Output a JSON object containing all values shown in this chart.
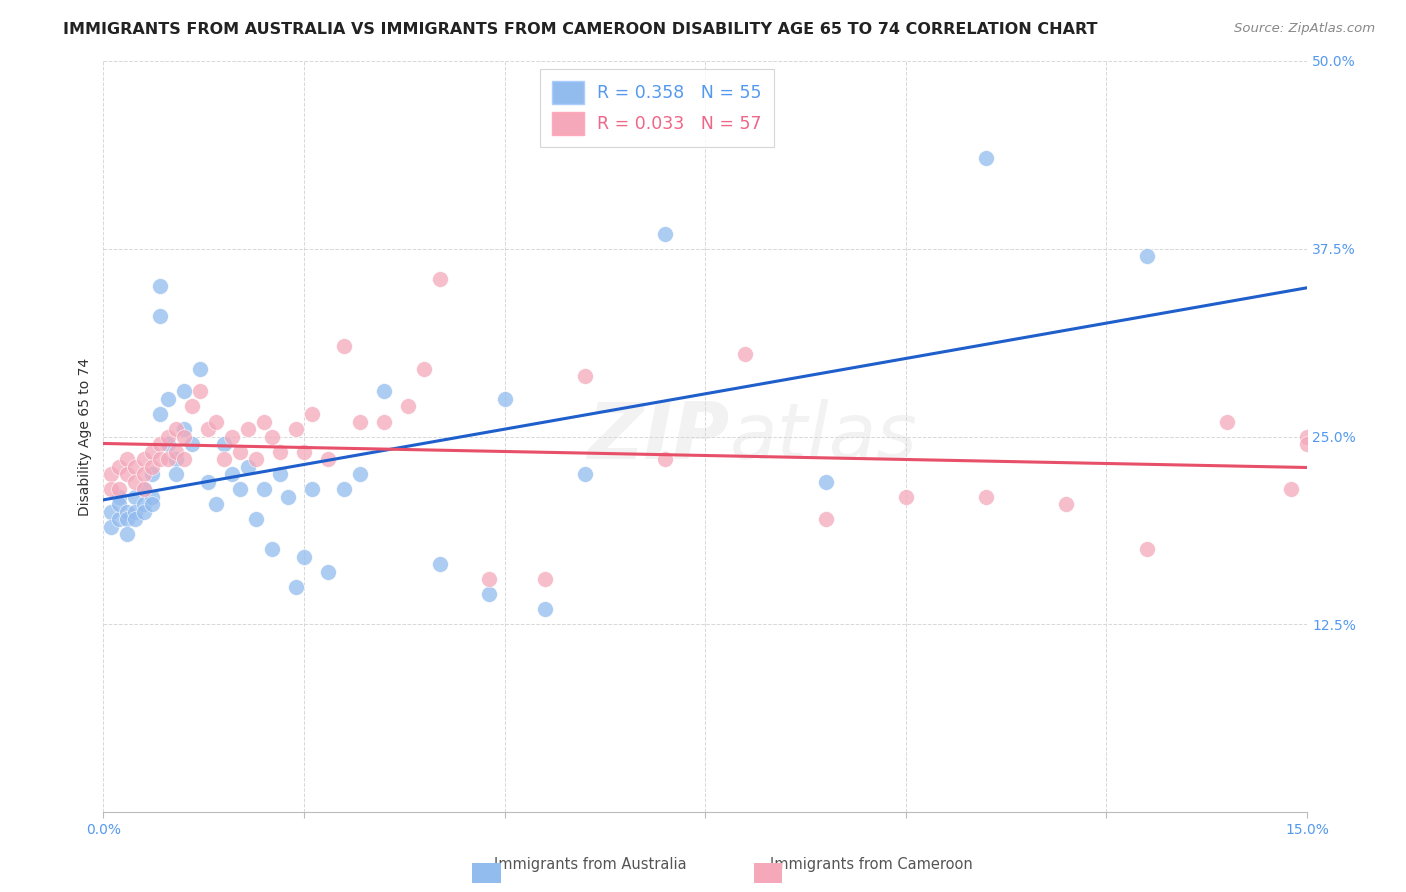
{
  "title": "IMMIGRANTS FROM AUSTRALIA VS IMMIGRANTS FROM CAMEROON DISABILITY AGE 65 TO 74 CORRELATION CHART",
  "source": "Source: ZipAtlas.com",
  "ylabel": "Disability Age 65 to 74",
  "xlim": [
    0.0,
    0.15
  ],
  "ylim": [
    0.0,
    0.5
  ],
  "xticks": [
    0.0,
    0.025,
    0.05,
    0.075,
    0.1,
    0.125,
    0.15
  ],
  "yticks": [
    0.0,
    0.125,
    0.25,
    0.375,
    0.5
  ],
  "yticklabels": [
    "",
    "12.5%",
    "25.0%",
    "37.5%",
    "50.0%"
  ],
  "legend_R_australia": "R = 0.358",
  "legend_N_australia": "N = 55",
  "legend_R_cameroon": "R = 0.033",
  "legend_N_cameroon": "N = 57",
  "color_australia": "#92BBEE",
  "color_cameroon": "#F4A8BA",
  "trendline_australia": "#1F5FCC",
  "trendline_cameroon": "#E8506A",
  "australia_x": [
    0.001,
    0.001,
    0.002,
    0.002,
    0.002,
    0.003,
    0.003,
    0.003,
    0.004,
    0.004,
    0.004,
    0.005,
    0.005,
    0.005,
    0.006,
    0.006,
    0.006,
    0.007,
    0.007,
    0.007,
    0.008,
    0.008,
    0.009,
    0.009,
    0.01,
    0.01,
    0.011,
    0.012,
    0.013,
    0.014,
    0.015,
    0.016,
    0.017,
    0.018,
    0.019,
    0.02,
    0.021,
    0.022,
    0.023,
    0.024,
    0.025,
    0.026,
    0.028,
    0.03,
    0.032,
    0.035,
    0.042,
    0.048,
    0.05,
    0.055,
    0.06,
    0.07,
    0.09,
    0.11,
    0.13
  ],
  "australia_y": [
    0.2,
    0.19,
    0.21,
    0.195,
    0.205,
    0.2,
    0.195,
    0.185,
    0.21,
    0.2,
    0.195,
    0.215,
    0.205,
    0.2,
    0.225,
    0.21,
    0.205,
    0.35,
    0.33,
    0.265,
    0.275,
    0.245,
    0.235,
    0.225,
    0.28,
    0.255,
    0.245,
    0.295,
    0.22,
    0.205,
    0.245,
    0.225,
    0.215,
    0.23,
    0.195,
    0.215,
    0.175,
    0.225,
    0.21,
    0.15,
    0.17,
    0.215,
    0.16,
    0.215,
    0.225,
    0.28,
    0.165,
    0.145,
    0.275,
    0.135,
    0.225,
    0.385,
    0.22,
    0.435,
    0.37
  ],
  "cameroon_x": [
    0.001,
    0.001,
    0.002,
    0.002,
    0.003,
    0.003,
    0.004,
    0.004,
    0.005,
    0.005,
    0.005,
    0.006,
    0.006,
    0.007,
    0.007,
    0.008,
    0.008,
    0.009,
    0.009,
    0.01,
    0.01,
    0.011,
    0.012,
    0.013,
    0.014,
    0.015,
    0.016,
    0.017,
    0.018,
    0.019,
    0.02,
    0.021,
    0.022,
    0.024,
    0.025,
    0.026,
    0.028,
    0.03,
    0.032,
    0.035,
    0.038,
    0.04,
    0.042,
    0.048,
    0.055,
    0.06,
    0.07,
    0.08,
    0.09,
    0.1,
    0.11,
    0.12,
    0.13,
    0.14,
    0.148,
    0.15,
    0.15
  ],
  "cameroon_y": [
    0.225,
    0.215,
    0.23,
    0.215,
    0.235,
    0.225,
    0.23,
    0.22,
    0.235,
    0.225,
    0.215,
    0.24,
    0.23,
    0.245,
    0.235,
    0.25,
    0.235,
    0.255,
    0.24,
    0.25,
    0.235,
    0.27,
    0.28,
    0.255,
    0.26,
    0.235,
    0.25,
    0.24,
    0.255,
    0.235,
    0.26,
    0.25,
    0.24,
    0.255,
    0.24,
    0.265,
    0.235,
    0.31,
    0.26,
    0.26,
    0.27,
    0.295,
    0.355,
    0.155,
    0.155,
    0.29,
    0.235,
    0.305,
    0.195,
    0.21,
    0.21,
    0.205,
    0.175,
    0.26,
    0.215,
    0.25,
    0.245
  ],
  "background_color": "#ffffff",
  "grid_color": "#d8d8d8",
  "title_fontsize": 11.5,
  "axis_label_fontsize": 10,
  "tick_fontsize": 10,
  "source_fontsize": 9.5
}
